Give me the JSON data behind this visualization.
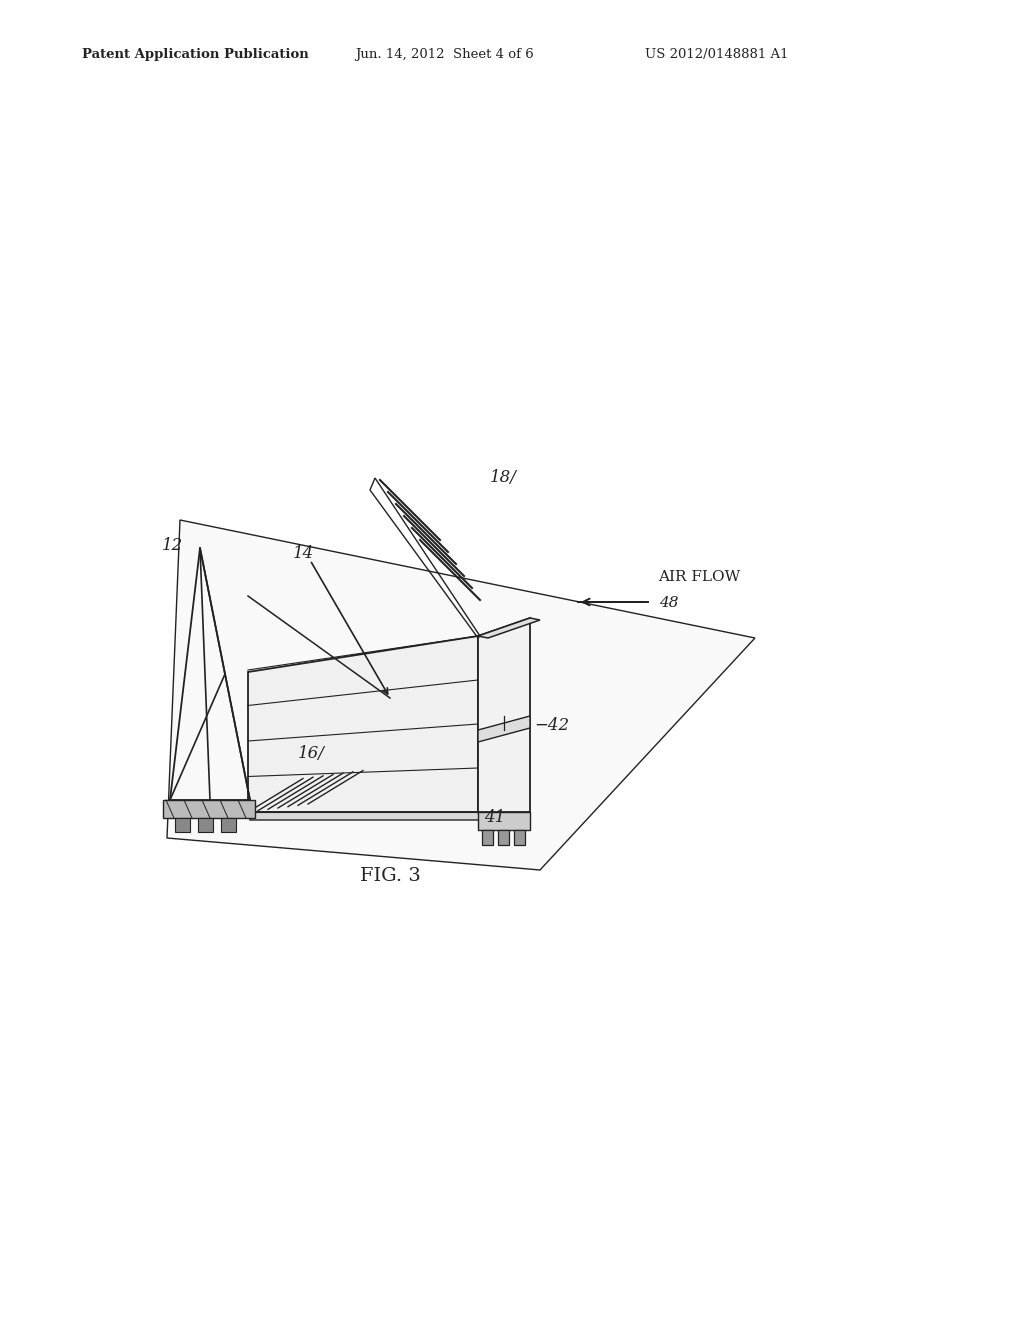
{
  "bg_color": "#ffffff",
  "line_color": "#222222",
  "header_left": "Patent Application Publication",
  "header_center": "Jun. 14, 2012  Sheet 4 of 6",
  "header_right": "US 2012/0148881 A1",
  "fig_label": "FIG. 3",
  "airflow_text": "AIR FLOW",
  "label_12": "12",
  "label_14": "14",
  "label_16": "16/",
  "label_18": "18/",
  "label_41": "41",
  "label_42": "−42",
  "label_48": "48"
}
